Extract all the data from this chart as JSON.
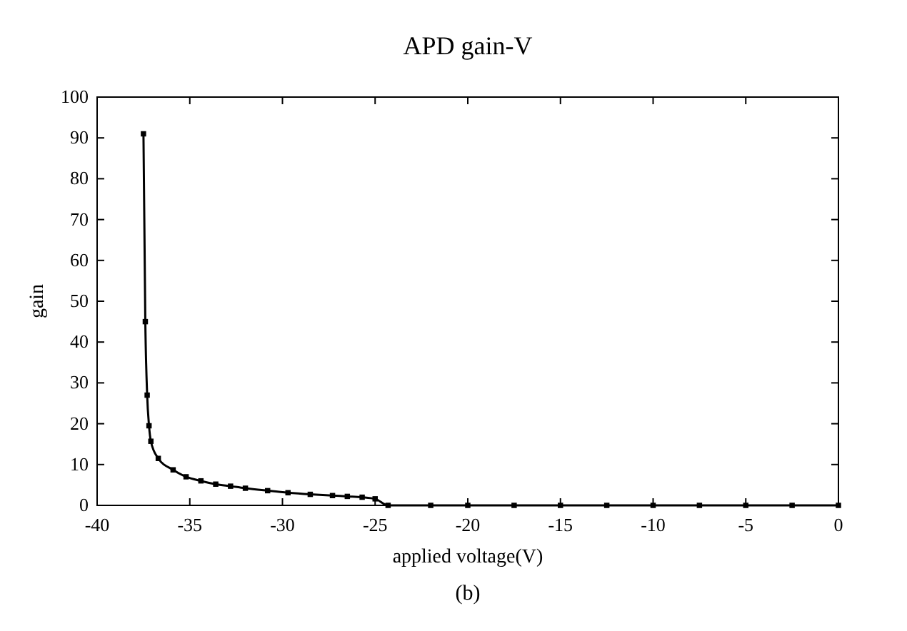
{
  "chart_data": {
    "type": "line",
    "title": "APD gain-V",
    "xlabel": "applied voltage(V)",
    "ylabel": "gain",
    "annotations": [
      "(b)"
    ],
    "x": [
      -37.5,
      -37.4,
      -37.3,
      -37.2,
      -37.1,
      -36.7,
      -35.9,
      -35.2,
      -34.4,
      -33.6,
      -32.8,
      -32,
      -30.8,
      -29.7,
      -28.5,
      -27.3,
      -26.5,
      -25.7,
      -25,
      -24.3,
      -22,
      -20,
      -17.5,
      -15,
      -12.5,
      -10,
      -7.5,
      -5,
      -2.5,
      0
    ],
    "series": [
      {
        "color": "#000000",
        "values": [
          91,
          45,
          27,
          19.5,
          15.7,
          11.5,
          8.7,
          7,
          6,
          5.2,
          4.7,
          4.2,
          3.6,
          3.1,
          2.7,
          2.4,
          2.2,
          2,
          1.6,
          0,
          0,
          0,
          0,
          0,
          0,
          0,
          0,
          0,
          0,
          0
        ]
      }
    ],
    "xlim": [
      -40,
      0
    ],
    "xticks": [
      -40,
      -35,
      -30,
      -25,
      -20,
      -15,
      -10,
      -5,
      0
    ],
    "ylim": [
      0,
      100
    ],
    "yticks": [
      0,
      10,
      20,
      30,
      40,
      50,
      60,
      70,
      80,
      90,
      100
    ],
    "grid": false,
    "marker": "square",
    "line_style": "solid"
  }
}
